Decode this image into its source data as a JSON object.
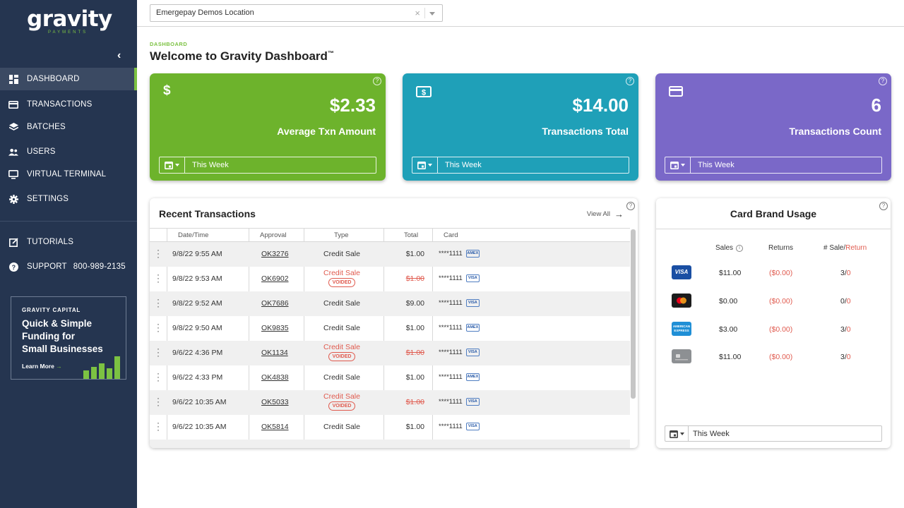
{
  "brand": {
    "logo_word": "gravity",
    "logo_sub": "PAYMENTS"
  },
  "sidebar": {
    "items": [
      {
        "label": "DASHBOARD",
        "icon": "dashboard-icon",
        "active": true
      },
      {
        "label": "TRANSACTIONS",
        "icon": "credit-card-icon"
      },
      {
        "label": "BATCHES",
        "icon": "layers-icon"
      },
      {
        "label": "USERS",
        "icon": "users-icon"
      },
      {
        "label": "VIRTUAL TERMINAL",
        "icon": "monitor-icon"
      },
      {
        "label": "SETTINGS",
        "icon": "gear-icon"
      },
      {
        "label": "TUTORIALS",
        "icon": "external-link-icon"
      },
      {
        "label": "SUPPORT",
        "icon": "question-circle-icon",
        "phone": "800-989-2135"
      }
    ],
    "promo": {
      "kicker": "GRAVITY CAPITAL",
      "line1": "Quick & Simple",
      "line2": "Funding for",
      "line3": "Small Businesses",
      "link": "Learn More"
    }
  },
  "topbar": {
    "location": "Emergepay Demos Location"
  },
  "page": {
    "breadcrumb": "DASHBOARD",
    "title": "Welcome to Gravity Dashboard",
    "title_mark": "™"
  },
  "cards": [
    {
      "value": "$2.33",
      "label": "Average Txn Amount",
      "period": "This Week",
      "color": "#6db32c"
    },
    {
      "value": "$14.00",
      "label": "Transactions Total",
      "period": "This Week",
      "color": "#1fa0b8"
    },
    {
      "value": "6",
      "label": "Transactions Count",
      "period": "This Week",
      "color": "#7a68c8"
    }
  ],
  "recent": {
    "title": "Recent Transactions",
    "view_all": "View All",
    "columns": [
      "Date/Time",
      "Approval",
      "Type",
      "Total",
      "Card"
    ],
    "voided_badge": "VOIDED",
    "rows": [
      {
        "date": "9/8/22 9:55 AM",
        "approval": "OK3276",
        "type": "Credit Sale",
        "voided": false,
        "total": "$1.00",
        "card": "****1111",
        "brand": "AMEX"
      },
      {
        "date": "9/8/22 9:53 AM",
        "approval": "OK6902",
        "type": "Credit Sale",
        "voided": true,
        "total": "$1.00",
        "card": "****1111",
        "brand": "VISA"
      },
      {
        "date": "9/8/22 9:52 AM",
        "approval": "OK7686",
        "type": "Credit Sale",
        "voided": false,
        "total": "$9.00",
        "card": "****1111",
        "brand": "VISA"
      },
      {
        "date": "9/8/22 9:50 AM",
        "approval": "OK9835",
        "type": "Credit Sale",
        "voided": false,
        "total": "$1.00",
        "card": "****1111",
        "brand": "AMEX"
      },
      {
        "date": "9/6/22 4:36 PM",
        "approval": "OK1134",
        "type": "Credit Sale",
        "voided": true,
        "total": "$1.00",
        "card": "****1111",
        "brand": "VISA"
      },
      {
        "date": "9/6/22 4:33 PM",
        "approval": "OK4838",
        "type": "Credit Sale",
        "voided": false,
        "total": "$1.00",
        "card": "****1111",
        "brand": "AMEX"
      },
      {
        "date": "9/6/22 10:35 AM",
        "approval": "OK5033",
        "type": "Credit Sale",
        "voided": true,
        "total": "$1.00",
        "card": "****1111",
        "brand": "VISA"
      },
      {
        "date": "9/6/22 10:35 AM",
        "approval": "OK5814",
        "type": "Credit Sale",
        "voided": false,
        "total": "$1.00",
        "card": "****1111",
        "brand": "VISA"
      }
    ]
  },
  "card_brand": {
    "title": "Card Brand Usage",
    "headers": {
      "sales": "Sales",
      "returns": "Returns",
      "sale_return_a": "# Sale/",
      "sale_return_b": "Return"
    },
    "rows": [
      {
        "brand": "visa-logo",
        "sales": "$11.00",
        "returns": "($0.00)",
        "sale": "3/",
        "ret": "0"
      },
      {
        "brand": "mastercard-logo",
        "sales": "$0.00",
        "returns": "($0.00)",
        "sale": "0/",
        "ret": "0"
      },
      {
        "brand": "amex-logo",
        "sales": "$3.00",
        "returns": "($0.00)",
        "sale": "3/",
        "ret": "0"
      },
      {
        "brand": "generic-card-logo",
        "sales": "$11.00",
        "returns": "($0.00)",
        "sale": "3/",
        "ret": "0"
      }
    ],
    "period": "This Week"
  }
}
